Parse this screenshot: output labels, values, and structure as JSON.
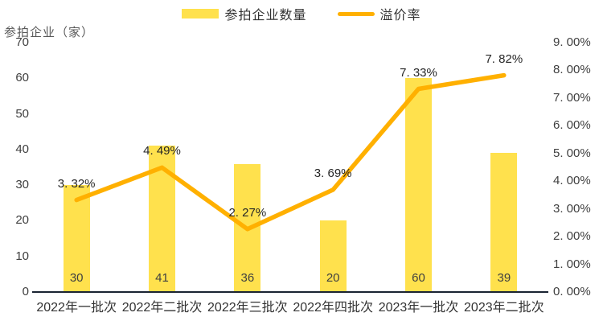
{
  "legend": {
    "items": [
      {
        "label": "参拍企业数量",
        "swatch": "bar"
      },
      {
        "label": "溢价率",
        "swatch": "line"
      }
    ]
  },
  "colors": {
    "bar": "#FFE14D",
    "line": "#FFB000",
    "axis_line": "#1A2433",
    "text": "#3F3F3F"
  },
  "chart_data": {
    "type": "combo",
    "title": "",
    "categories": [
      "2022年一批次",
      "2022年二批次",
      "2022年三批次",
      "2022年四批次",
      "2023年一批次",
      "2023年二批次"
    ],
    "series": [
      {
        "name": "参拍企业数量",
        "type": "bar",
        "axis": "left",
        "color": "#FFE14D",
        "values": [
          30,
          41,
          36,
          20,
          60,
          39
        ],
        "labels": [
          "30",
          "41",
          "36",
          "20",
          "60",
          "39"
        ]
      },
      {
        "name": "溢价率",
        "type": "line",
        "axis": "right",
        "color": "#FFB000",
        "values": [
          3.32,
          4.49,
          2.27,
          3.69,
          7.33,
          7.82
        ],
        "labels": [
          "3. 32%",
          "4. 49%",
          "2. 27%",
          "3. 69%",
          "7. 33%",
          "7. 82%"
        ]
      }
    ],
    "left_axis": {
      "title": "参拍企业（家）",
      "min": 0,
      "max": 70,
      "tick_step": 10,
      "tick_labels": [
        "0",
        "10",
        "20",
        "30",
        "40",
        "50",
        "60",
        "70"
      ]
    },
    "right_axis": {
      "title": "",
      "min": 0,
      "max": 9,
      "tick_step": 1,
      "tick_labels": [
        "0. 00%",
        "1. 00%",
        "2. 00%",
        "3. 00%",
        "4. 00%",
        "5. 00%",
        "6. 00%",
        "7. 00%",
        "8. 00%",
        "9. 00%"
      ]
    },
    "grid": false,
    "legend_position": "top"
  }
}
